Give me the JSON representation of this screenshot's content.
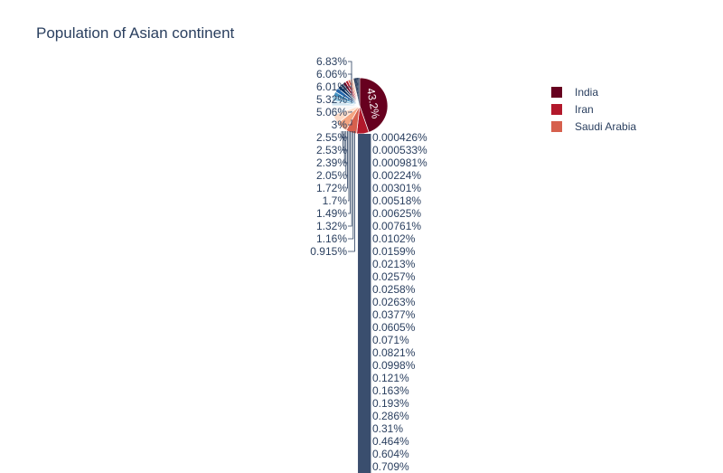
{
  "chart_data": {
    "type": "pie",
    "title": "Population of Asian continent",
    "legend_position": "top-right",
    "inside_label": "43.2%",
    "legend": [
      {
        "name": "India",
        "color": "#67001f"
      },
      {
        "name": "Iran",
        "color": "#b2182b"
      },
      {
        "name": "Saudi Arabia",
        "color": "#d6604d"
      }
    ],
    "left_labels": [
      "6.83%",
      "6.06%",
      "6.01%",
      "5.32%",
      "5.06%",
      "3%",
      "2.55%",
      "2.53%",
      "2.39%",
      "2.05%",
      "1.72%",
      "1.7%",
      "1.49%",
      "1.32%",
      "1.16%",
      "0.915%"
    ],
    "right_labels": [
      "0.000426%",
      "0.000533%",
      "0.000981%",
      "0.00224%",
      "0.00301%",
      "0.00518%",
      "0.00625%",
      "0.00761%",
      "0.0102%",
      "0.0159%",
      "0.0213%",
      "0.0257%",
      "0.0258%",
      "0.0263%",
      "0.0377%",
      "0.0605%",
      "0.071%",
      "0.0821%",
      "0.0998%",
      "0.121%",
      "0.163%",
      "0.193%",
      "0.286%",
      "0.31%",
      "0.464%",
      "0.604%",
      "0.709%"
    ],
    "slices": [
      43.2,
      6.83,
      6.06,
      6.01,
      5.32,
      5.06,
      3,
      2.55,
      2.53,
      2.39,
      2.05,
      1.72,
      1.7,
      1.49,
      1.32,
      1.16,
      0.915,
      0.709,
      0.604,
      0.464,
      0.31,
      0.286,
      0.193,
      0.163,
      0.121,
      0.0998,
      0.0821,
      0.071,
      0.0605,
      0.0377,
      0.0263,
      0.0258,
      0.0257,
      0.0213,
      0.0159,
      0.0102,
      0.00761,
      0.00625,
      0.00518,
      0.00301,
      0.00224,
      0.000981,
      0.000533,
      0.000426
    ],
    "slice_colors": [
      "#67001f",
      "#b2182b",
      "#d6604d",
      "#f4a582",
      "#fddbc7",
      "#f7f7f7",
      "#d1e5f0",
      "#92c5de",
      "#4393c3",
      "#2166ac",
      "#053061",
      "#2a3f5f",
      "#67001f",
      "#b2182b",
      "#d6604d",
      "#f4a582",
      "#fddbc7"
    ]
  }
}
